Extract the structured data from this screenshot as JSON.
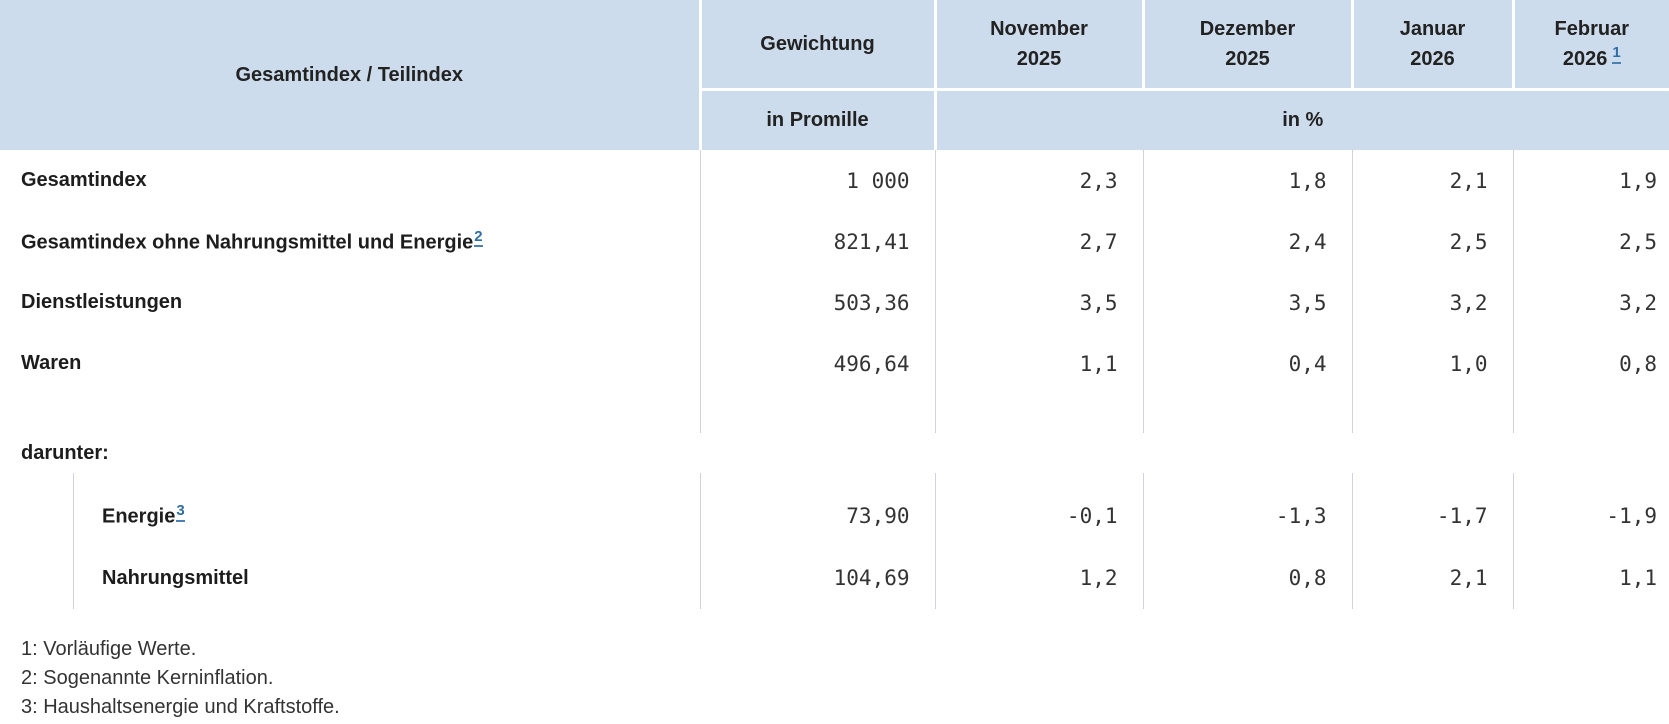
{
  "table": {
    "corner_header": "Gesamtindex / Teilindex",
    "weight_header": "Gewichtung",
    "weight_unit": "in Promille",
    "percent_unit": "in %",
    "months": [
      {
        "line1": "November",
        "line2": "2025"
      },
      {
        "line1": "Dezember",
        "line2": "2025"
      },
      {
        "line1": "Januar",
        "line2": "2026"
      },
      {
        "line1": "Februar",
        "line2": "2026",
        "footnote": "1"
      }
    ],
    "rows": [
      {
        "label": "Gesamtindex",
        "weight": "1 000",
        "values": [
          "2,3",
          "1,8",
          "2,1",
          "1,9"
        ]
      },
      {
        "label": "Gesamtindex ohne Nahrungsmittel und Energie",
        "footnote": "2",
        "weight": "821,41",
        "values": [
          "2,7",
          "2,4",
          "2,5",
          "2,5"
        ]
      },
      {
        "label": "Dienstleistungen",
        "weight": "503,36",
        "values": [
          "3,5",
          "3,5",
          "3,2",
          "3,2"
        ]
      },
      {
        "label": "Waren",
        "weight": "496,64",
        "values": [
          "1,1",
          "0,4",
          "1,0",
          "0,8"
        ]
      }
    ],
    "darunter_label": "darunter:",
    "sub_rows": [
      {
        "label": "Energie",
        "footnote": "3",
        "weight": "73,90",
        "values": [
          "-0,1",
          "-1,3",
          "-1,7",
          "-1,9"
        ]
      },
      {
        "label": "Nahrungsmittel",
        "weight": "104,69",
        "values": [
          "1,2",
          "0,8",
          "2,1",
          "1,1"
        ]
      }
    ]
  },
  "footnotes": [
    "1: Vorläufige Werte.",
    "2: Sogenannte Kerninflation.",
    "3: Haushaltsenergie und Kraftstoffe."
  ],
  "colors": {
    "header_bg": "#cddcec",
    "grid_line": "#d0d4d8",
    "footnote_link_blue": "#2f6da4",
    "label_text": "#1d1d1d",
    "number_text": "#333333"
  }
}
